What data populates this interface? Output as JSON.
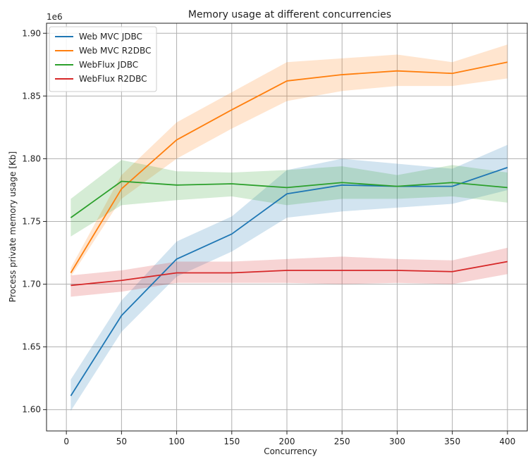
{
  "chart_data": {
    "type": "line",
    "title": "Memory usage at different concurrencies",
    "xlabel": "Concurrency",
    "ylabel": "Process private memory usage [Kb]",
    "y_offset_label": "1e6",
    "xlim": [
      -18,
      418
    ],
    "ylim": [
      1.583,
      1.908
    ],
    "x_ticks": [
      0,
      50,
      100,
      150,
      200,
      250,
      300,
      350,
      400
    ],
    "x_tick_labels": [
      "0",
      "50",
      "100",
      "150",
      "200",
      "250",
      "300",
      "350",
      "400"
    ],
    "y_ticks": [
      1.6,
      1.65,
      1.7,
      1.75,
      1.8,
      1.85,
      1.9
    ],
    "y_tick_labels": [
      "1.60",
      "1.65",
      "1.70",
      "1.75",
      "1.80",
      "1.85",
      "1.90"
    ],
    "grid": true,
    "legend_position": "top-left",
    "x": [
      4,
      50,
      100,
      150,
      200,
      250,
      300,
      350,
      400
    ],
    "series": [
      {
        "name": "Web MVC JDBC",
        "color": "#1f77b4",
        "values": [
          1.611,
          1.675,
          1.72,
          1.74,
          1.772,
          1.779,
          1.778,
          1.778,
          1.793
        ],
        "lower": [
          1.599,
          1.662,
          1.706,
          1.726,
          1.753,
          1.758,
          1.761,
          1.764,
          1.775
        ],
        "upper": [
          1.624,
          1.687,
          1.734,
          1.754,
          1.791,
          1.8,
          1.796,
          1.792,
          1.811
        ]
      },
      {
        "name": "Web MVC R2DBC",
        "color": "#ff7f0e",
        "values": [
          1.709,
          1.776,
          1.815,
          1.839,
          1.862,
          1.867,
          1.87,
          1.868,
          1.877
        ],
        "lower": [
          1.706,
          1.768,
          1.8,
          1.824,
          1.846,
          1.854,
          1.858,
          1.858,
          1.864
        ],
        "upper": [
          1.713,
          1.787,
          1.829,
          1.853,
          1.877,
          1.88,
          1.883,
          1.877,
          1.891
        ]
      },
      {
        "name": "WebFlux JDBC",
        "color": "#2ca02c",
        "values": [
          1.753,
          1.782,
          1.779,
          1.78,
          1.777,
          1.781,
          1.778,
          1.781,
          1.777
        ],
        "lower": [
          1.738,
          1.763,
          1.767,
          1.77,
          1.763,
          1.768,
          1.768,
          1.77,
          1.765
        ],
        "upper": [
          1.768,
          1.799,
          1.79,
          1.789,
          1.791,
          1.794,
          1.787,
          1.795,
          1.789
        ]
      },
      {
        "name": "WebFlux R2DBC",
        "color": "#d62728",
        "values": [
          1.699,
          1.703,
          1.709,
          1.709,
          1.711,
          1.711,
          1.711,
          1.71,
          1.718
        ],
        "lower": [
          1.69,
          1.694,
          1.701,
          1.701,
          1.701,
          1.7,
          1.701,
          1.7,
          1.708
        ],
        "upper": [
          1.707,
          1.711,
          1.718,
          1.718,
          1.72,
          1.722,
          1.72,
          1.719,
          1.729
        ]
      }
    ]
  }
}
